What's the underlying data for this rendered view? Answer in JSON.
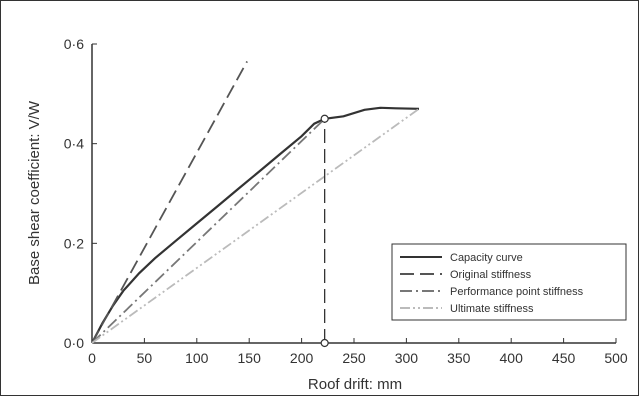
{
  "chart_data": {
    "type": "line",
    "xlabel": "Roof drift: mm",
    "ylabel": "Base shear coefficient: V/W",
    "xlim": [
      0,
      500
    ],
    "ylim": [
      0,
      0.6
    ],
    "x_ticks": [
      {
        "value": 0,
        "label": "0"
      },
      {
        "value": 50,
        "label": "50"
      },
      {
        "value": 100,
        "label": "100"
      },
      {
        "value": 150,
        "label": "150"
      },
      {
        "value": 200,
        "label": "200"
      },
      {
        "value": 250,
        "label": "250"
      },
      {
        "value": 300,
        "label": "300"
      },
      {
        "value": 350,
        "label": "350"
      },
      {
        "value": 400,
        "label": "400"
      },
      {
        "value": 450,
        "label": "450"
      },
      {
        "value": 500,
        "label": "500"
      }
    ],
    "y_ticks": [
      {
        "value": 0,
        "label": "0·0"
      },
      {
        "value": 0.2,
        "label": "0·2"
      },
      {
        "value": 0.4,
        "label": "0·4"
      },
      {
        "value": 0.6,
        "label": "0·6"
      }
    ],
    "grid": false,
    "legend_position": "bottom-right",
    "series": [
      {
        "name": "Capacity curve",
        "style": "solid",
        "color": "#333333",
        "points": [
          [
            0,
            0
          ],
          [
            10,
            0.04
          ],
          [
            20,
            0.075
          ],
          [
            30,
            0.105
          ],
          [
            45,
            0.14
          ],
          [
            60,
            0.17
          ],
          [
            80,
            0.205
          ],
          [
            100,
            0.24
          ],
          [
            120,
            0.275
          ],
          [
            140,
            0.31
          ],
          [
            160,
            0.345
          ],
          [
            180,
            0.38
          ],
          [
            200,
            0.415
          ],
          [
            212,
            0.44
          ],
          [
            222,
            0.45
          ],
          [
            240,
            0.455
          ],
          [
            260,
            0.468
          ],
          [
            275,
            0.472
          ],
          [
            290,
            0.471
          ],
          [
            312,
            0.47
          ]
        ]
      },
      {
        "name": "Original stiffness",
        "style": "dash",
        "color": "#555555",
        "points": [
          [
            0,
            0
          ],
          [
            148,
            0.565
          ]
        ]
      },
      {
        "name": "Performance point stiffness",
        "style": "dashdot",
        "color": "#777777",
        "points": [
          [
            0,
            0
          ],
          [
            222,
            0.45
          ]
        ]
      },
      {
        "name": "Ultimate stiffness",
        "style": "dashdotdot",
        "color": "#bbbbbb",
        "points": [
          [
            0,
            0
          ],
          [
            312,
            0.47
          ]
        ]
      }
    ],
    "annotations": [
      {
        "type": "vertical_line",
        "style": "dash",
        "x": 222,
        "y_from": 0,
        "y_to": 0.45
      },
      {
        "type": "marker",
        "shape": "circle",
        "x": 222,
        "y": 0.45
      },
      {
        "type": "marker",
        "shape": "circle",
        "x": 222,
        "y": 0
      }
    ]
  }
}
